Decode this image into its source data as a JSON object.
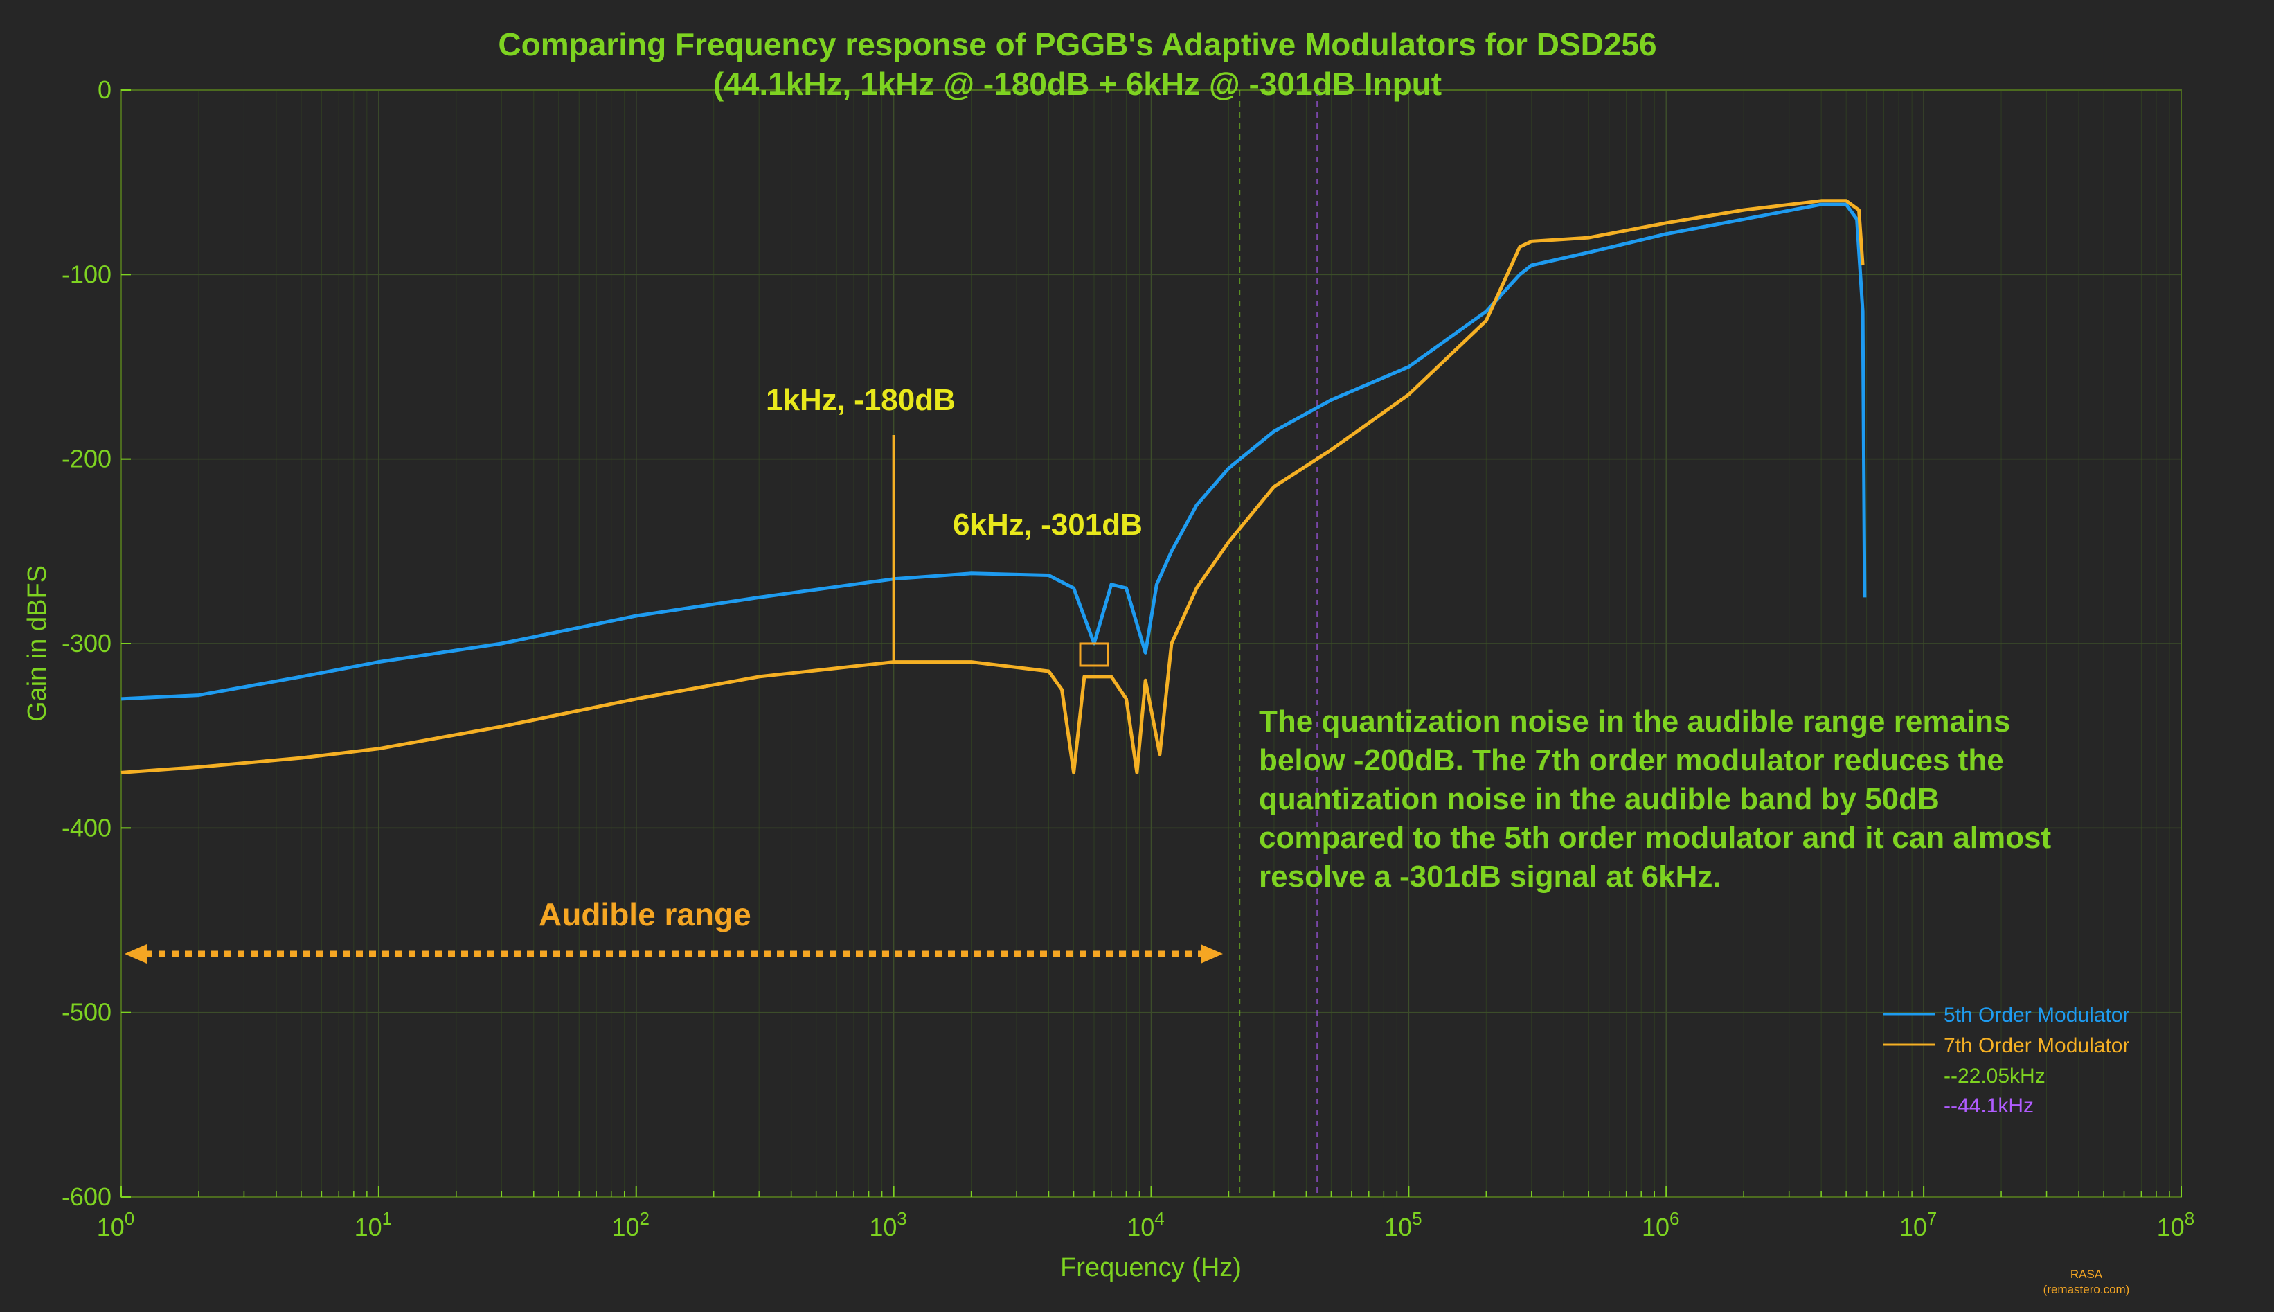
{
  "chart_data": {
    "type": "line",
    "title": "Comparing Frequency response of PGGB's Adaptive Modulators for  DSD256",
    "subtitle": "(44.1kHz, 1kHz @ -180dB + 6kHz @ -301dB Input",
    "xlabel": "Frequency (Hz)",
    "ylabel": "Gain in dBFS",
    "x_scale": "log",
    "xlim": [
      1,
      100000000
    ],
    "ylim": [
      -600,
      0
    ],
    "x_ticks": [
      {
        "base": "10",
        "exp": "0"
      },
      {
        "base": "10",
        "exp": "1"
      },
      {
        "base": "10",
        "exp": "2"
      },
      {
        "base": "10",
        "exp": "3"
      },
      {
        "base": "10",
        "exp": "4"
      },
      {
        "base": "10",
        "exp": "5"
      },
      {
        "base": "10",
        "exp": "6"
      },
      {
        "base": "10",
        "exp": "7"
      },
      {
        "base": "10",
        "exp": "8"
      }
    ],
    "y_ticks": [
      "0",
      "-100",
      "-200",
      "-300",
      "-400",
      "-500",
      "-600"
    ],
    "grid": true,
    "legend_position": "bottom-right",
    "colors": {
      "background": "#262626",
      "fifth_order": "#1e9bf0",
      "seventh_order": "#f5b024",
      "line_22k": "#7ed321",
      "line_44k": "#b05cff"
    },
    "series": [
      {
        "name": "5th Order Modulator",
        "x": [
          1,
          2,
          5,
          10,
          30,
          100,
          300,
          1000,
          2000,
          4000,
          5000,
          6000,
          7000,
          8000,
          9500,
          10500,
          12000,
          15000,
          20000,
          30000,
          50000,
          100000,
          200000,
          270000,
          300000,
          500000,
          1000000,
          2000000,
          4000000,
          5000000,
          5500000,
          5800000,
          5900000
        ],
        "y": [
          -330,
          -328,
          -318,
          -310,
          -300,
          -285,
          -275,
          -265,
          -262,
          -263,
          -270,
          -300,
          -268,
          -270,
          -305,
          -268,
          -250,
          -225,
          -205,
          -185,
          -168,
          -150,
          -120,
          -100,
          -95,
          -88,
          -78,
          -70,
          -62,
          -62,
          -70,
          -120,
          -275
        ]
      },
      {
        "name": "7th Order Modulator",
        "x": [
          1,
          2,
          5,
          10,
          30,
          100,
          300,
          1000,
          2000,
          4000,
          4500,
          5000,
          5500,
          6000,
          7000,
          8000,
          8800,
          9500,
          10800,
          12000,
          15000,
          20000,
          30000,
          50000,
          100000,
          200000,
          270000,
          300000,
          500000,
          1000000,
          2000000,
          4000000,
          5000000,
          5600000,
          5800000
        ],
        "y": [
          -370,
          -367,
          -362,
          -357,
          -345,
          -330,
          -318,
          -310,
          -310,
          -315,
          -325,
          -370,
          -318,
          -318,
          -318,
          -330,
          -370,
          -320,
          -360,
          -300,
          -270,
          -245,
          -215,
          -195,
          -165,
          -125,
          -85,
          -82,
          -80,
          -72,
          -65,
          -60,
          -60,
          -65,
          -95
        ]
      }
    ],
    "markers": {
      "signal_1k": {
        "x": 1000,
        "y": -187
      },
      "signal_6k": {
        "x": 6000,
        "y": -306
      }
    },
    "vlines": [
      {
        "label": "--22.05kHz",
        "x": 22050
      },
      {
        "label": "--44.1kHz",
        "x": 44100
      }
    ],
    "annotations": {
      "peak_1k": "1kHz, -180dB",
      "peak_6k": "6kHz, -301dB",
      "audible": "Audible range",
      "note_lines": [
        "The quantization noise in the audible range remains",
        "below -200dB. The 7th order modulator reduces the",
        "quantization noise in the audible band by 50dB",
        "compared to the 5th order modulator and it can almost",
        "resolve a -301dB signal at 6kHz."
      ]
    },
    "credit": [
      "RASA",
      "(remastero.com)"
    ]
  }
}
